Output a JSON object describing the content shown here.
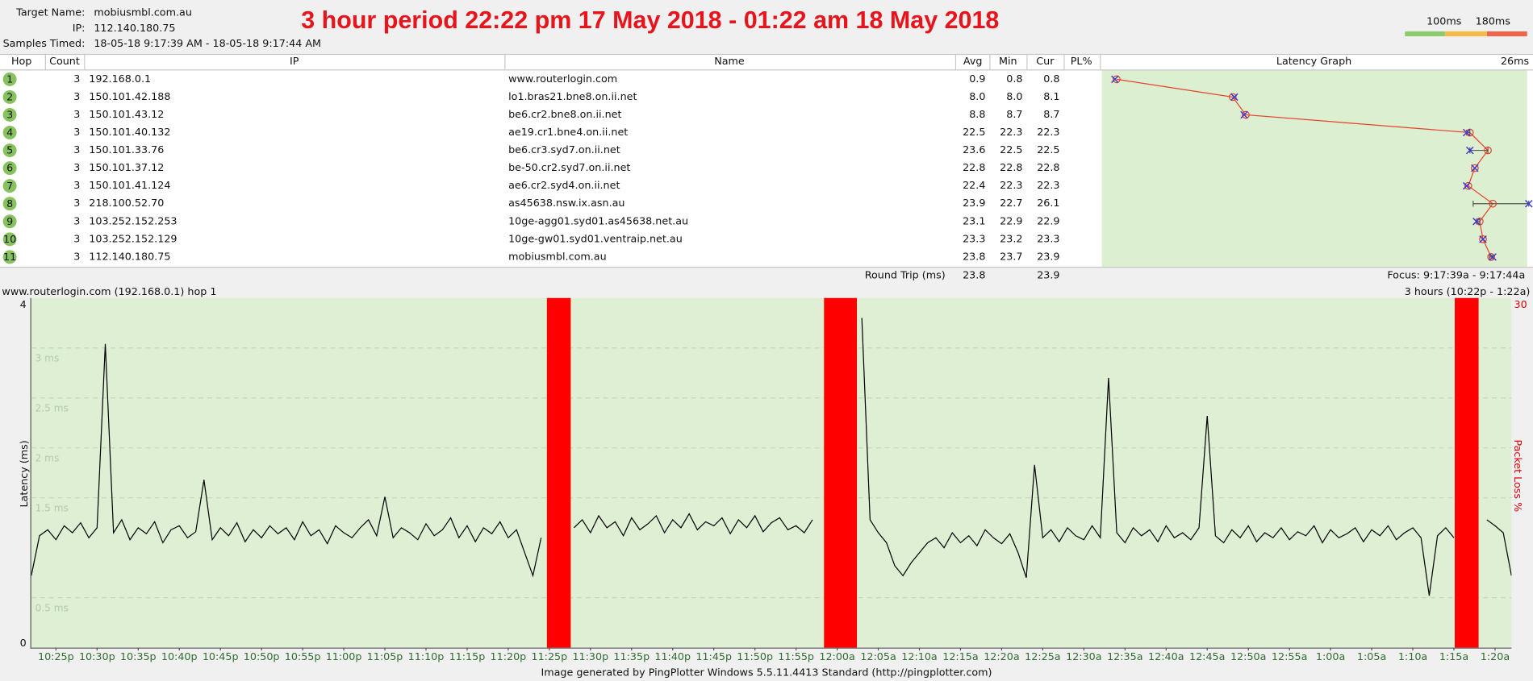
{
  "header": {
    "target_name_label": "Target Name:",
    "target_name": "mobiusmbl.com.au",
    "ip_label": "IP:",
    "ip": "112.140.180.75",
    "samples_label": "Samples Timed:",
    "samples": "18-05-18 9:17:39 AM - 18-05-18 9:17:44 AM",
    "title": "3 hour period 22:22 pm 17 May 2018 - 01:22 am 18 May 2018",
    "scale_labels": [
      "100ms",
      "180ms"
    ]
  },
  "table": {
    "columns": [
      "Hop",
      "Count",
      "IP",
      "Name",
      "Avg",
      "Min",
      "Cur",
      "PL%"
    ],
    "rows": [
      [
        1,
        3,
        "192.168.0.1",
        "www.routerlogin.com",
        "0.9",
        "0.8",
        "0.8"
      ],
      [
        2,
        3,
        "150.101.42.188",
        "lo1.bras21.bne8.on.ii.net",
        "8.0",
        "8.0",
        "8.1"
      ],
      [
        3,
        3,
        "150.101.43.12",
        "be6.cr2.bne8.on.ii.net",
        "8.8",
        "8.7",
        "8.7"
      ],
      [
        4,
        3,
        "150.101.40.132",
        "ae19.cr1.bne4.on.ii.net",
        "22.5",
        "22.3",
        "22.3"
      ],
      [
        5,
        3,
        "150.101.33.76",
        "be6.cr3.syd7.on.ii.net",
        "23.6",
        "22.5",
        "22.5"
      ],
      [
        6,
        3,
        "150.101.37.12",
        "be-50.cr2.syd7.on.ii.net",
        "22.8",
        "22.8",
        "22.8"
      ],
      [
        7,
        3,
        "150.101.41.124",
        "ae6.cr2.syd4.on.ii.net",
        "22.4",
        "22.3",
        "22.3"
      ],
      [
        8,
        3,
        "218.100.52.70",
        "as45638.nsw.ix.asn.au",
        "23.9",
        "22.7",
        "26.1"
      ],
      [
        9,
        3,
        "103.252.152.253",
        "10ge-agg01.syd01.as45638.net.au",
        "23.1",
        "22.9",
        "22.9"
      ],
      [
        10,
        3,
        "103.252.152.129",
        "10ge-gw01.syd01.ventraip.net.au",
        "23.3",
        "23.2",
        "23.3"
      ],
      [
        11,
        3,
        "112.140.180.75",
        "mobiusmbl.com.au",
        "23.8",
        "23.7",
        "23.9"
      ]
    ],
    "footer": {
      "label": "Round Trip (ms)",
      "avg": "23.8",
      "cur": "23.9",
      "focus": "Focus: 9:17:39a - 9:17:44a"
    }
  },
  "latency_graph": {
    "title": "Latency Graph",
    "xlim": [
      0,
      26
    ],
    "xticks": [
      {
        "value": 26,
        "label": "26ms"
      }
    ]
  },
  "chart_data": {
    "type": "line",
    "title": "www.routerlogin.com (192.168.0.1) hop 1",
    "subtitle": "3 hours (10:22p - 1:22a)",
    "y_label": "Latency (ms)",
    "y2_label": "Packet Loss %",
    "credit": "Image generated by PingPlotter Windows 5.5.11.4413 Standard (http://pingplotter.com)",
    "xlim": [
      0,
      180
    ],
    "ylim": [
      0,
      3.5
    ],
    "y_top_label": "4",
    "y2lim": [
      0,
      30
    ],
    "y2ticks": [
      30
    ],
    "grid": true,
    "yticks": [
      0,
      {
        "value": 0.5,
        "label": "0.5 ms"
      },
      {
        "value": 1.5,
        "label": "1.5 ms"
      },
      {
        "value": 2,
        "label": "2 ms"
      },
      {
        "value": 2.5,
        "label": "2.5 ms"
      },
      {
        "value": 3,
        "label": "3 ms"
      }
    ],
    "xticks": [
      {
        "value": 3,
        "label": "10:25p"
      },
      {
        "value": 8,
        "label": "10:30p"
      },
      {
        "value": 13,
        "label": "10:35p"
      },
      {
        "value": 18,
        "label": "10:40p"
      },
      {
        "value": 23,
        "label": "10:45p"
      },
      {
        "value": 28,
        "label": "10:50p"
      },
      {
        "value": 33,
        "label": "10:55p"
      },
      {
        "value": 38,
        "label": "11:00p"
      },
      {
        "value": 43,
        "label": "11:05p"
      },
      {
        "value": 48,
        "label": "11:10p"
      },
      {
        "value": 53,
        "label": "11:15p"
      },
      {
        "value": 58,
        "label": "11:20p"
      },
      {
        "value": 63,
        "label": "11:25p"
      },
      {
        "value": 68,
        "label": "11:30p"
      },
      {
        "value": 73,
        "label": "11:35p"
      },
      {
        "value": 78,
        "label": "11:40p"
      },
      {
        "value": 83,
        "label": "11:45p"
      },
      {
        "value": 88,
        "label": "11:50p"
      },
      {
        "value": 93,
        "label": "11:55p"
      },
      {
        "value": 98,
        "label": "12:00a"
      },
      {
        "value": 103,
        "label": "12:05a"
      },
      {
        "value": 108,
        "label": "12:10a"
      },
      {
        "value": 113,
        "label": "12:15a"
      },
      {
        "value": 118,
        "label": "12:20a"
      },
      {
        "value": 123,
        "label": "12:25a"
      },
      {
        "value": 128,
        "label": "12:30a"
      },
      {
        "value": 133,
        "label": "12:35a"
      },
      {
        "value": 138,
        "label": "12:40a"
      },
      {
        "value": 143,
        "label": "12:45a"
      },
      {
        "value": 148,
        "label": "12:50a"
      },
      {
        "value": 153,
        "label": "12:55a"
      },
      {
        "value": 158,
        "label": "1:00a"
      },
      {
        "value": 163,
        "label": "1:05a"
      },
      {
        "value": 168,
        "label": "1:10a"
      },
      {
        "value": 173,
        "label": "1:15a"
      },
      {
        "value": 178,
        "label": "1:20a"
      }
    ],
    "x": [
      0,
      1,
      2,
      3,
      4,
      5,
      6,
      7,
      8,
      9,
      10,
      11,
      12,
      13,
      14,
      15,
      16,
      17,
      18,
      19,
      20,
      21,
      22,
      23,
      24,
      25,
      26,
      27,
      28,
      29,
      30,
      31,
      32,
      33,
      34,
      35,
      36,
      37,
      38,
      39,
      40,
      41,
      42,
      43,
      44,
      45,
      46,
      47,
      48,
      49,
      50,
      51,
      52,
      53,
      54,
      55,
      56,
      57,
      58,
      59,
      60,
      61,
      62,
      63,
      64,
      65,
      66,
      67,
      68,
      69,
      70,
      71,
      72,
      73,
      74,
      75,
      76,
      77,
      78,
      79,
      80,
      81,
      82,
      83,
      84,
      85,
      86,
      87,
      88,
      89,
      90,
      91,
      92,
      93,
      94,
      95,
      96,
      97,
      98,
      99,
      100,
      101,
      102,
      103,
      104,
      105,
      106,
      107,
      108,
      109,
      110,
      111,
      112,
      113,
      114,
      115,
      116,
      117,
      118,
      119,
      120,
      121,
      122,
      123,
      124,
      125,
      126,
      127,
      128,
      129,
      130,
      131,
      132,
      133,
      134,
      135,
      136,
      137,
      138,
      139,
      140,
      141,
      142,
      143,
      144,
      145,
      146,
      147,
      148,
      149,
      150,
      151,
      152,
      153,
      154,
      155,
      156,
      157,
      158,
      159,
      160,
      161,
      162,
      163,
      164,
      165,
      166,
      167,
      168,
      169,
      170,
      171,
      172,
      173,
      174,
      175,
      176,
      177,
      178,
      179,
      180
    ],
    "series": [
      {
        "color": "#000000",
        "values": [
          0.72,
          1.12,
          1.18,
          1.08,
          1.22,
          1.15,
          1.25,
          1.1,
          1.2,
          3.04,
          1.15,
          1.28,
          1.08,
          1.2,
          1.14,
          1.26,
          1.05,
          1.18,
          1.22,
          1.1,
          1.16,
          1.68,
          1.08,
          1.2,
          1.12,
          1.25,
          1.06,
          1.18,
          1.1,
          1.22,
          1.14,
          1.2,
          1.08,
          1.26,
          1.12,
          1.18,
          1.04,
          1.22,
          1.15,
          1.1,
          1.2,
          1.28,
          1.12,
          1.51,
          1.1,
          1.2,
          1.15,
          1.08,
          1.24,
          1.12,
          1.18,
          1.3,
          1.1,
          1.22,
          1.06,
          1.2,
          1.14,
          1.26,
          1.1,
          1.18,
          0.95,
          0.72,
          1.1,
          null,
          null,
          null,
          1.2,
          1.28,
          1.15,
          1.32,
          1.2,
          1.26,
          1.12,
          1.3,
          1.18,
          1.24,
          1.32,
          1.15,
          1.28,
          1.2,
          1.34,
          1.18,
          1.26,
          1.22,
          1.3,
          1.14,
          1.28,
          1.2,
          1.32,
          1.16,
          1.25,
          1.3,
          1.18,
          1.22,
          1.15,
          1.28,
          null,
          null,
          null,
          null,
          null,
          3.3,
          1.28,
          1.15,
          1.05,
          0.82,
          0.72,
          0.85,
          0.95,
          1.05,
          1.1,
          1.0,
          1.15,
          1.05,
          1.12,
          1.02,
          1.18,
          1.1,
          1.04,
          1.14,
          0.95,
          0.7,
          1.83,
          1.1,
          1.18,
          1.06,
          1.2,
          1.12,
          1.08,
          1.22,
          1.1,
          2.7,
          1.15,
          1.05,
          1.2,
          1.12,
          1.18,
          1.06,
          1.22,
          1.1,
          1.15,
          1.08,
          1.2,
          2.32,
          1.12,
          1.05,
          1.18,
          1.1,
          1.22,
          1.06,
          1.15,
          1.1,
          1.2,
          1.08,
          1.16,
          1.12,
          1.22,
          1.05,
          1.18,
          1.1,
          1.14,
          1.2,
          1.06,
          1.18,
          1.12,
          1.22,
          1.08,
          1.15,
          1.2,
          1.1,
          0.52,
          1.12,
          1.2,
          1.1,
          null,
          null,
          null,
          1.28,
          1.22,
          1.15,
          0.72
        ]
      }
    ],
    "packet_loss": {
      "axis": "y2",
      "color": "#ff0000",
      "starts": [
        62.7,
        96.4,
        173.1
      ],
      "ends": [
        65.6,
        100.4,
        176.0
      ],
      "values": [
        100,
        100,
        100
      ]
    }
  }
}
